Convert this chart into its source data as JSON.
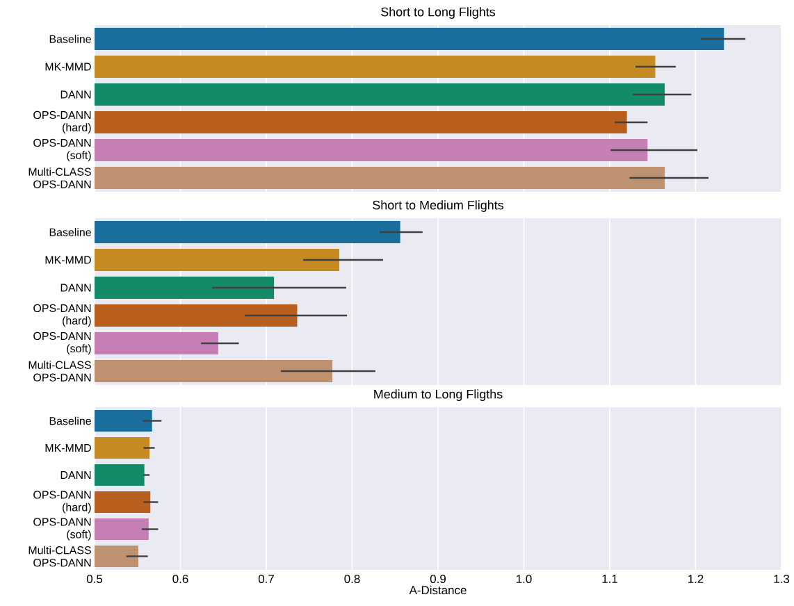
{
  "chart_data": [
    {
      "type": "bar",
      "orientation": "horizontal",
      "title": "Short to Long Flights",
      "categories": [
        "Baseline",
        "MK-MMD",
        "DANN",
        "OPS-DANN (hard)",
        "OPS-DANN (soft)",
        "Multi-CLASS OPS-DANN"
      ],
      "values": [
        1.233,
        1.153,
        1.164,
        1.12,
        1.144,
        1.164
      ],
      "errors": [
        [
          1.206,
          1.258
        ],
        [
          1.13,
          1.177
        ],
        [
          1.127,
          1.195
        ],
        [
          1.106,
          1.144
        ],
        [
          1.101,
          1.202
        ],
        [
          1.123,
          1.215
        ]
      ],
      "colors": [
        "#1a6e9e",
        "#c68a22",
        "#138a68",
        "#b85f1e",
        "#c57fb5",
        "#be9270"
      ],
      "xlim": [
        0.5,
        1.3
      ],
      "xticks": [
        0.5,
        0.6,
        0.7,
        0.8,
        0.9,
        1.0,
        1.1,
        1.2,
        1.3
      ],
      "grid": "x",
      "tick_labels": "y"
    },
    {
      "type": "bar",
      "orientation": "horizontal",
      "title": "Short to Medium Flights",
      "categories": [
        "Baseline",
        "MK-MMD",
        "DANN",
        "OPS-DANN (hard)",
        "OPS-DANN (soft)",
        "Multi-CLASS OPS-DANN"
      ],
      "values": [
        0.856,
        0.785,
        0.709,
        0.736,
        0.644,
        0.777
      ],
      "errors": [
        [
          0.832,
          0.882
        ],
        [
          0.743,
          0.836
        ],
        [
          0.637,
          0.793
        ],
        [
          0.675,
          0.794
        ],
        [
          0.624,
          0.668
        ],
        [
          0.717,
          0.827
        ]
      ],
      "colors": [
        "#1a6e9e",
        "#c68a22",
        "#138a68",
        "#b85f1e",
        "#c57fb5",
        "#be9270"
      ],
      "xlim": [
        0.5,
        1.3
      ],
      "xticks": [
        0.5,
        0.6,
        0.7,
        0.8,
        0.9,
        1.0,
        1.1,
        1.2,
        1.3
      ],
      "grid": "x",
      "tick_labels": "y"
    },
    {
      "type": "bar",
      "orientation": "horizontal",
      "title": "Medium to Long Fligths",
      "xlabel": "A-Distance",
      "categories": [
        "Baseline",
        "MK-MMD",
        "DANN",
        "OPS-DANN (hard)",
        "OPS-DANN (soft)",
        "Multi-CLASS OPS-DANN"
      ],
      "values": [
        0.567,
        0.564,
        0.558,
        0.565,
        0.563,
        0.551
      ],
      "errors": [
        [
          0.556,
          0.578
        ],
        [
          0.557,
          0.57
        ],
        [
          0.557,
          0.564
        ],
        [
          0.557,
          0.574
        ],
        [
          0.555,
          0.574
        ],
        [
          0.537,
          0.562
        ]
      ],
      "colors": [
        "#1a6e9e",
        "#c68a22",
        "#138a68",
        "#b85f1e",
        "#c57fb5",
        "#be9270"
      ],
      "xlim": [
        0.5,
        1.3
      ],
      "xticks": [
        0.5,
        0.6,
        0.7,
        0.8,
        0.9,
        {
          "value": 1.0,
          "label": "1.0"
        },
        1.1,
        1.2,
        1.3
      ],
      "grid": "x"
    }
  ]
}
